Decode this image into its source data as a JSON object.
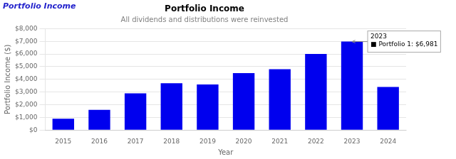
{
  "chart_data": {
    "type": "bar",
    "title": "Portfolio Income",
    "subtitle": "All dividends and distributions were reinvested",
    "xlabel": "Year",
    "ylabel": "Portfolio Income ($)",
    "categories": [
      "2015",
      "2016",
      "2017",
      "2018",
      "2019",
      "2020",
      "2021",
      "2022",
      "2023",
      "2024"
    ],
    "values": [
      900,
      1600,
      2900,
      3700,
      3600,
      4500,
      4800,
      6000,
      6981,
      3400
    ],
    "color": "#0000ee",
    "ylim": [
      0,
      8000
    ],
    "yticks": [
      {
        "value": 0,
        "label": "$0"
      },
      {
        "value": 1000,
        "label": "$1,000"
      },
      {
        "value": 2000,
        "label": "$2,000"
      },
      {
        "value": 3000,
        "label": "$3,000"
      },
      {
        "value": 4000,
        "label": "$4,000"
      },
      {
        "value": 5000,
        "label": "$5,000"
      },
      {
        "value": 6000,
        "label": "$6,000"
      },
      {
        "value": 7000,
        "label": "$7,000"
      },
      {
        "value": 8000,
        "label": "$8,000"
      }
    ],
    "grid": true,
    "annotations": [
      {
        "text": "Portfolio Income",
        "color": "#2222cc"
      },
      {
        "text": "2023\n■ Portfolio 1: $6,981",
        "x": "2023",
        "y": 6981
      }
    ]
  }
}
